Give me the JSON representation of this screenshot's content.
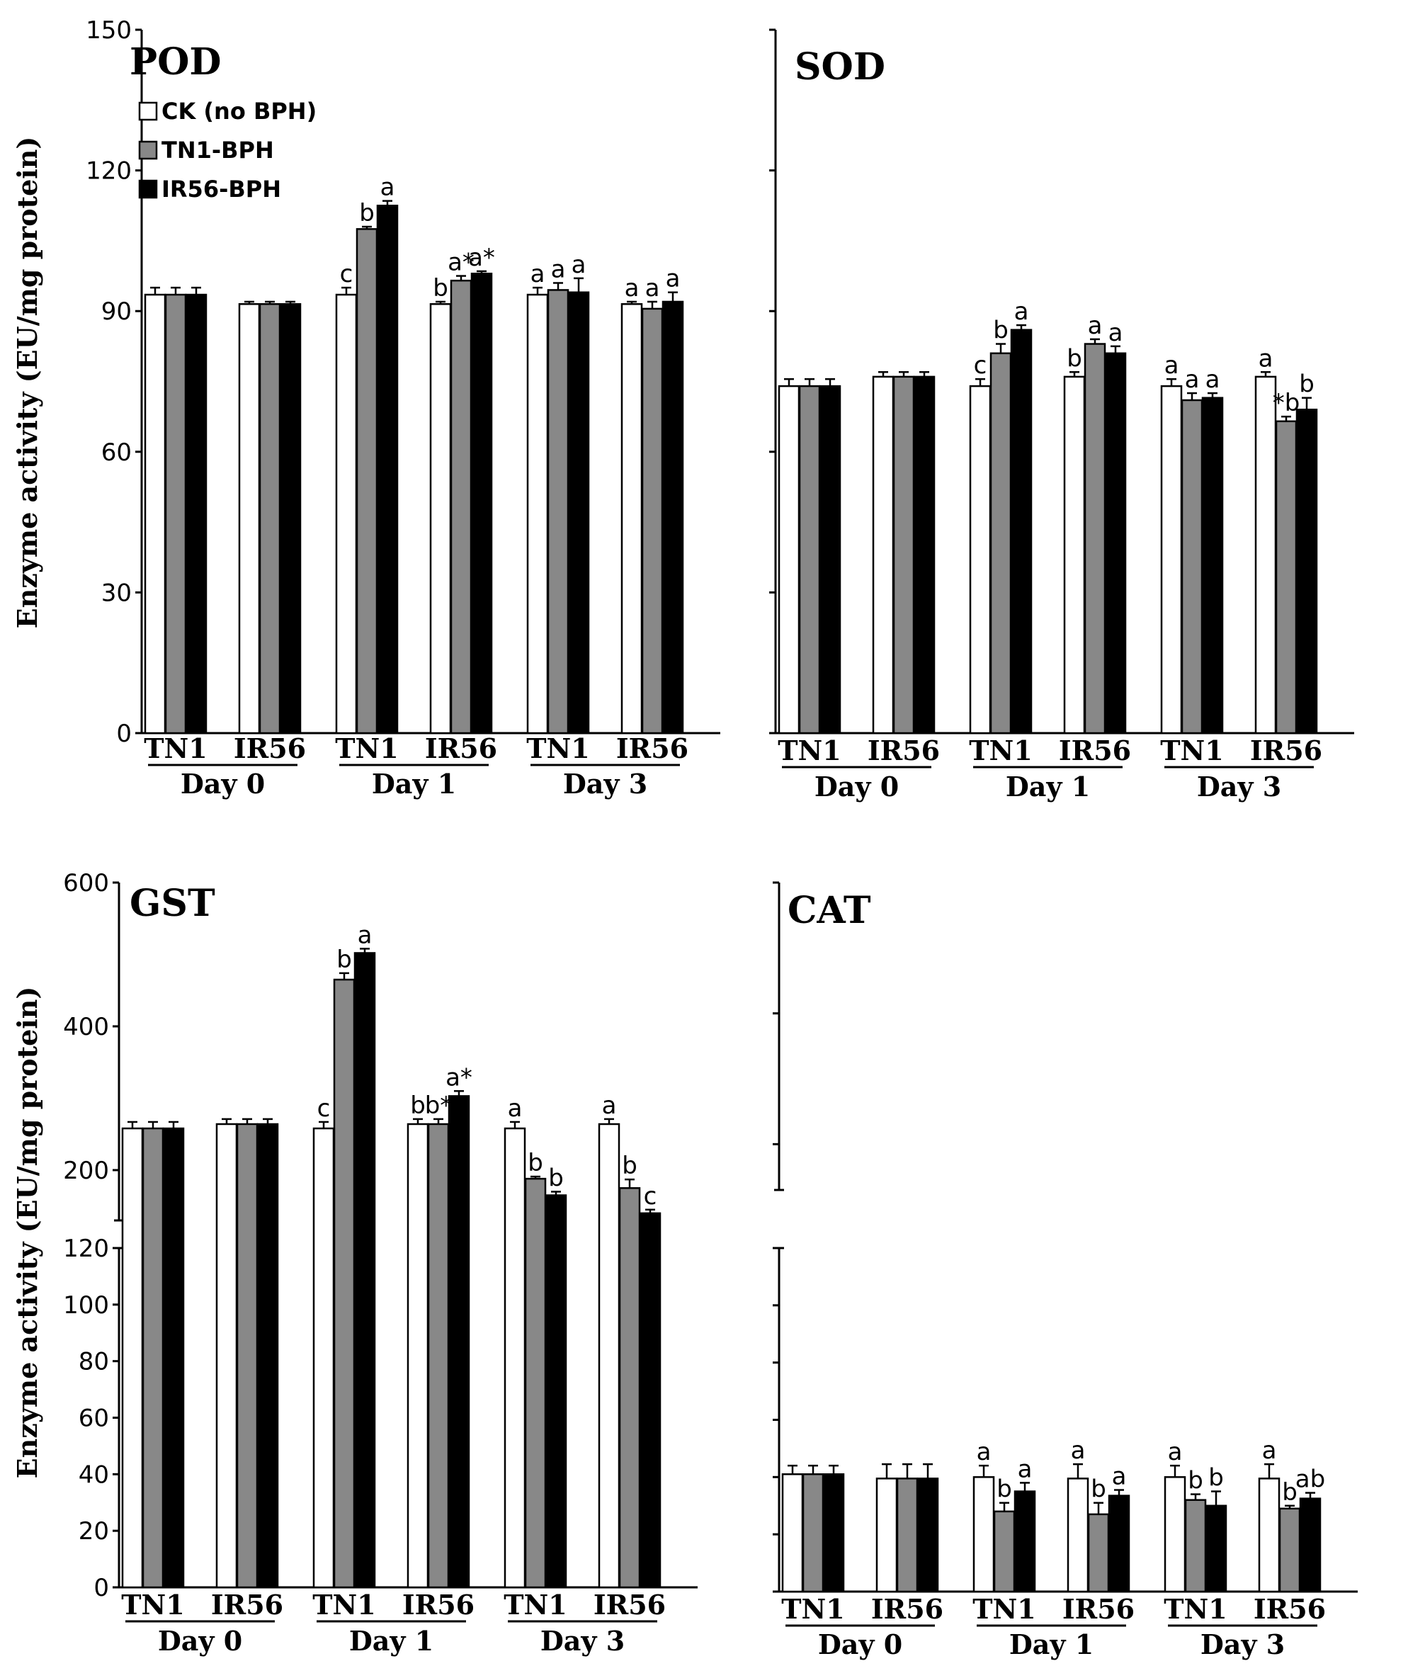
{
  "figure": {
    "colors": {
      "CK": "#ffffff",
      "TN1BPH": "#888888",
      "IR56BPH": "#000000",
      "axis": "#000000"
    },
    "legend": [
      "CK (no BPH)",
      "TN1-BPH",
      "IR56-BPH"
    ],
    "ylabel": "Enzyme activity (EU/mg protein)",
    "varieties": [
      "TN1",
      "IR56"
    ],
    "days": [
      "Day 0",
      "Day 1",
      "Day 3"
    ]
  },
  "chart_data": [
    {
      "id": "POD",
      "type": "bar",
      "title": "POD",
      "ylabel": "Enzyme activity (EU/mg protein)",
      "ylim": [
        0,
        150
      ],
      "yticks": [
        0,
        30,
        60,
        90,
        120,
        150
      ],
      "show_tick_labels": true,
      "groups": [
        "TN1",
        "IR56",
        "TN1",
        "IR56",
        "TN1",
        "IR56"
      ],
      "days": [
        "Day 0",
        "Day 1",
        "Day 3"
      ],
      "series": [
        {
          "name": "CK (no BPH)",
          "values": [
            93.5,
            91.5,
            93.5,
            91.5,
            93.5,
            91.5
          ],
          "errors": [
            1.5,
            0.5,
            1.5,
            0.5,
            1.5,
            0.5
          ]
        },
        {
          "name": "TN1-BPH",
          "values": [
            93.5,
            91.5,
            107.5,
            96.5,
            94.5,
            90.5
          ],
          "errors": [
            1.5,
            0.5,
            0.5,
            1.0,
            1.5,
            1.5
          ]
        },
        {
          "name": "IR56-BPH",
          "values": [
            93.5,
            91.5,
            112.5,
            98.0,
            94.0,
            92.0
          ],
          "errors": [
            1.5,
            0.5,
            1.0,
            0.5,
            3.0,
            2.0
          ]
        }
      ],
      "annotations": [
        [
          "",
          "",
          "c",
          "b",
          "a",
          "a"
        ],
        [
          "",
          "",
          "b",
          "a*",
          "a",
          "a"
        ],
        [
          "",
          "",
          "a",
          "a*",
          "a",
          "a"
        ]
      ]
    },
    {
      "id": "SOD",
      "type": "bar",
      "title": "SOD",
      "ylabel": "",
      "ylim": [
        0,
        150
      ],
      "yticks": [
        0,
        30,
        60,
        90,
        120,
        150
      ],
      "show_tick_labels": false,
      "groups": [
        "TN1",
        "IR56",
        "TN1",
        "IR56",
        "TN1",
        "IR56"
      ],
      "days": [
        "Day 0",
        "Day 1",
        "Day 3"
      ],
      "series": [
        {
          "name": "CK (no BPH)",
          "values": [
            74,
            76,
            74,
            76,
            74,
            76
          ],
          "errors": [
            1.5,
            1.0,
            1.5,
            1.0,
            1.5,
            1.0
          ]
        },
        {
          "name": "TN1-BPH",
          "values": [
            74,
            76,
            81,
            83,
            71,
            66.5
          ],
          "errors": [
            1.5,
            1.0,
            2.0,
            1.0,
            1.5,
            1.0
          ]
        },
        {
          "name": "IR56-BPH",
          "values": [
            74,
            76,
            86,
            81,
            71.5,
            69
          ],
          "errors": [
            1.5,
            1.0,
            1.0,
            1.5,
            1.0,
            2.5
          ]
        }
      ],
      "annotations": [
        [
          "",
          "",
          "c",
          "b",
          "a",
          "a"
        ],
        [
          "",
          "",
          "b",
          "a",
          "a",
          "*b"
        ],
        [
          "",
          "",
          "a",
          "a",
          "a",
          "b"
        ]
      ]
    },
    {
      "id": "GST",
      "type": "bar",
      "title": "GST",
      "broken_axis": true,
      "ylabel": "Enzyme activity (EU/mg protein)",
      "lower_ylim": [
        0,
        120
      ],
      "lower_yticks": [
        0,
        20,
        40,
        60,
        80,
        100,
        120
      ],
      "upper_ylim": [
        130,
        600
      ],
      "upper_yticks": [
        200,
        400,
        600
      ],
      "show_tick_labels": true,
      "groups": [
        "TN1",
        "IR56",
        "TN1",
        "IR56",
        "TN1",
        "IR56"
      ],
      "days": [
        "Day 0",
        "Day 1",
        "Day 3"
      ],
      "series": [
        {
          "name": "CK (no BPH)",
          "values": [
            258,
            264,
            258,
            264,
            258,
            264
          ],
          "errors": [
            9,
            7,
            9,
            7,
            9,
            7
          ]
        },
        {
          "name": "TN1-BPH",
          "values": [
            258,
            264,
            465,
            264,
            188,
            175
          ],
          "errors": [
            9,
            7,
            9,
            7,
            3,
            12
          ]
        },
        {
          "name": "IR56-BPH",
          "values": [
            258,
            264,
            502,
            303,
            165,
            140
          ],
          "errors": [
            9,
            7,
            6,
            7,
            5,
            5
          ]
        }
      ],
      "annotations": [
        [
          "",
          "",
          "c",
          "b",
          "a",
          "a"
        ],
        [
          "",
          "",
          "b",
          "b*",
          "b",
          "b"
        ],
        [
          "",
          "",
          "a",
          "a*",
          "b",
          "c"
        ]
      ]
    },
    {
      "id": "CAT",
      "type": "bar",
      "title": "CAT",
      "broken_axis": true,
      "ylabel": "",
      "lower_ylim": [
        0,
        120
      ],
      "lower_yticks": [
        0,
        20,
        40,
        60,
        80,
        100,
        120
      ],
      "upper_ylim": [
        130,
        600
      ],
      "upper_yticks": [
        200,
        400,
        600
      ],
      "show_tick_labels": false,
      "groups": [
        "TN1",
        "IR56",
        "TN1",
        "IR56",
        "TN1",
        "IR56"
      ],
      "days": [
        "Day 0",
        "Day 1",
        "Day 3"
      ],
      "series": [
        {
          "name": "CK (no BPH)",
          "values": [
            41,
            39.5,
            40,
            39.5,
            40,
            39.5
          ],
          "errors": [
            3,
            5,
            4,
            5,
            4,
            5
          ]
        },
        {
          "name": "TN1-BPH",
          "values": [
            41,
            39.5,
            28,
            27,
            32,
            29
          ],
          "errors": [
            3,
            5,
            3,
            4,
            2,
            1
          ]
        },
        {
          "name": "IR56-BPH",
          "values": [
            41,
            39.5,
            35,
            33.5,
            30,
            32.5
          ],
          "errors": [
            3,
            5,
            3,
            2,
            5,
            2
          ]
        }
      ],
      "annotations": [
        [
          "",
          "",
          "a",
          "a",
          "a",
          "a"
        ],
        [
          "",
          "",
          "b",
          "b",
          "b",
          "b"
        ],
        [
          "",
          "",
          "a",
          "a",
          "b",
          "ab"
        ]
      ]
    }
  ]
}
